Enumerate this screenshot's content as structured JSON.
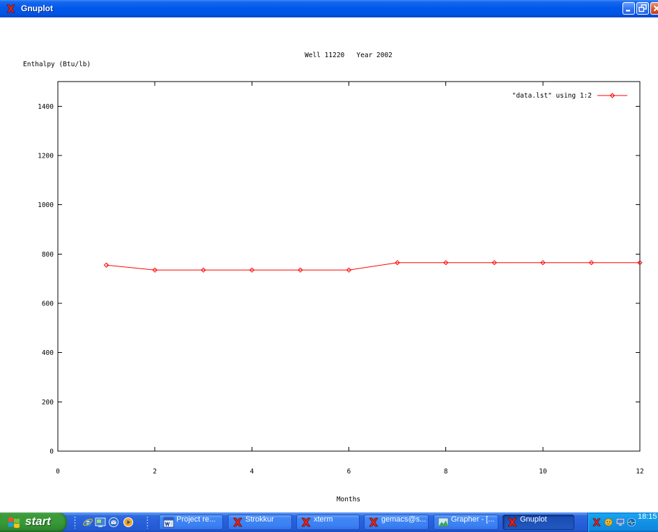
{
  "window": {
    "title": "Gnuplot",
    "title_icon": "gnuplot-icon",
    "controls": [
      {
        "name": "minimize",
        "icon": "minimize-icon"
      },
      {
        "name": "restore",
        "icon": "restore-icon"
      },
      {
        "name": "close",
        "icon": "close-icon"
      }
    ],
    "colors": {
      "title_bar": "#0058ea",
      "client_background": "#ffffff"
    }
  },
  "chart_data": {
    "type": "line",
    "title": "Well 11220   Year 2002",
    "xlabel": "Months",
    "ylabel": "Enthalpy (Btu/lb)",
    "xlim": [
      0,
      12
    ],
    "ylim": [
      0,
      1500
    ],
    "xticks": [
      0,
      2,
      4,
      6,
      8,
      10,
      12
    ],
    "yticks": [
      0,
      200,
      400,
      600,
      800,
      1000,
      1200,
      1400
    ],
    "grid": false,
    "legend": "top-right",
    "series": [
      {
        "name": "\"data.lst\" using 1:2",
        "color": "#ff0000",
        "marker": "diamond",
        "x": [
          1,
          2,
          3,
          4,
          5,
          6,
          7,
          8,
          9,
          10,
          11,
          12
        ],
        "y": [
          755,
          735,
          735,
          735,
          735,
          735,
          765,
          765,
          765,
          765,
          765,
          765
        ]
      }
    ]
  },
  "taskbar": {
    "colors": {
      "bar": "#255ed8",
      "start_button": "#389a38",
      "active_task": "#1e52b7",
      "tray": "#1292e4"
    },
    "start": {
      "label": "start",
      "icon": "windows-logo-icon"
    },
    "quick_launch": [
      {
        "icon": "internet-explorer-icon"
      },
      {
        "icon": "show-desktop-icon"
      },
      {
        "icon": "outlook-express-icon"
      },
      {
        "icon": "media-player-icon"
      }
    ],
    "tasks": [
      {
        "label": "Project re...",
        "icon": "word-document-icon",
        "active": false
      },
      {
        "label": "Strokkur",
        "icon": "x-window-icon",
        "active": false
      },
      {
        "label": "xterm",
        "icon": "x-window-icon",
        "active": false
      },
      {
        "label": "gemacs@s...",
        "icon": "x-window-icon",
        "active": false
      },
      {
        "label": "Grapher - [...",
        "icon": "grapher-icon",
        "active": false
      },
      {
        "label": "Gnuplot",
        "icon": "gnuplot-icon",
        "active": true
      }
    ],
    "tray": {
      "icons": [
        "x-server-icon",
        "status-icon",
        "monitor-icon",
        "network-activity-icon"
      ],
      "clock": "18:15"
    }
  }
}
